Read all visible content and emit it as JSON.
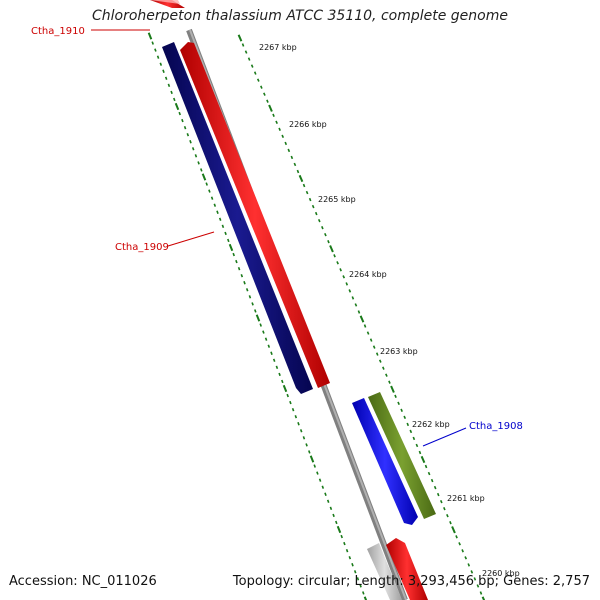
{
  "title": "Chloroherpeton thalassium ATCC 35110, complete genome",
  "accession_label": "Accession: NC_011026",
  "summary_label": "Topology: circular; Length: 3,293,456 bp; Genes: 2,757",
  "colors": {
    "backbone": "#808080",
    "tick": "#1a7a1a",
    "label_red": "#cc0000",
    "label_blue": "#0000cc",
    "gene_navy": "#0d0d7a",
    "gene_red": "#ff1a1a",
    "gene_blue": "#1a1aff",
    "gene_olive": "#6b8e23",
    "gene_grey": "#c8c8c8"
  },
  "scale_labels": [
    "2267 kbp",
    "2266 kbp",
    "2265 kbp",
    "2264 kbp",
    "2263 kbp",
    "2262 kbp",
    "2261 kbp",
    "2260 kbp"
  ],
  "genes": [
    {
      "name": "Ctha_1910",
      "color": "gene_red",
      "labeled": true,
      "label_color": "label_red"
    },
    {
      "name": "Ctha_1909",
      "color": "gene_navy",
      "labeled": true,
      "label_color": "label_red"
    },
    {
      "name": "",
      "color": "gene_red",
      "labeled": false
    },
    {
      "name": "",
      "color": "gene_blue",
      "labeled": false
    },
    {
      "name": "Ctha_1908",
      "color": "gene_olive",
      "labeled": true,
      "label_color": "label_blue"
    },
    {
      "name": "",
      "color": "gene_grey",
      "labeled": false
    },
    {
      "name": "",
      "color": "gene_red",
      "labeled": false
    }
  ]
}
